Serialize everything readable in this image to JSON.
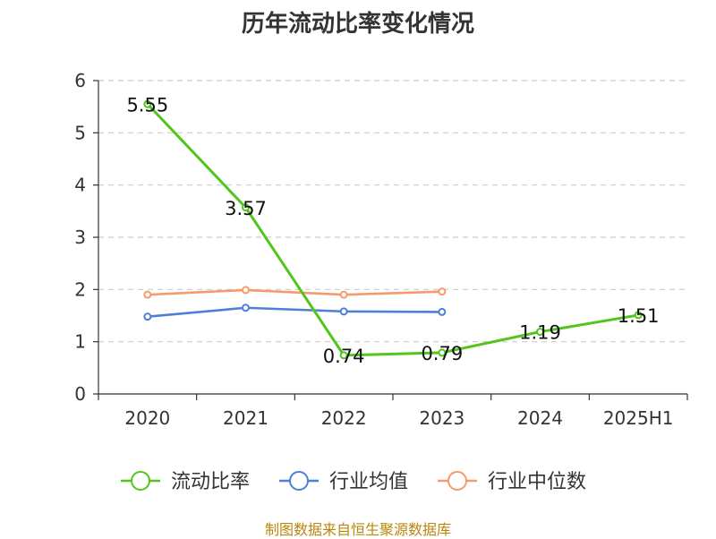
{
  "chart_data": {
    "type": "line",
    "title": "历年流动比率变化情况",
    "categories": [
      "2020",
      "2021",
      "2022",
      "2023",
      "2024",
      "2025H1"
    ],
    "ylim": [
      0,
      6
    ],
    "yticks": [
      0,
      1,
      2,
      3,
      4,
      5,
      6
    ],
    "grid": true,
    "legend_position": "bottom",
    "series": [
      {
        "name": "流动比率",
        "color": "#52c41a",
        "values": [
          5.55,
          3.57,
          0.74,
          0.79,
          1.19,
          1.51
        ],
        "labels": [
          "5.55",
          "3.57",
          "0.74",
          "0.79",
          "1.19",
          "1.51"
        ]
      },
      {
        "name": "行业均值",
        "color": "#4e7fd8",
        "values": [
          1.48,
          1.65,
          1.58,
          1.57,
          null,
          null
        ]
      },
      {
        "name": "行业中位数",
        "color": "#f79a6b",
        "values": [
          1.9,
          1.99,
          1.9,
          1.96,
          null,
          null
        ]
      }
    ]
  },
  "source_note": "制图数据来自恒生聚源数据库"
}
